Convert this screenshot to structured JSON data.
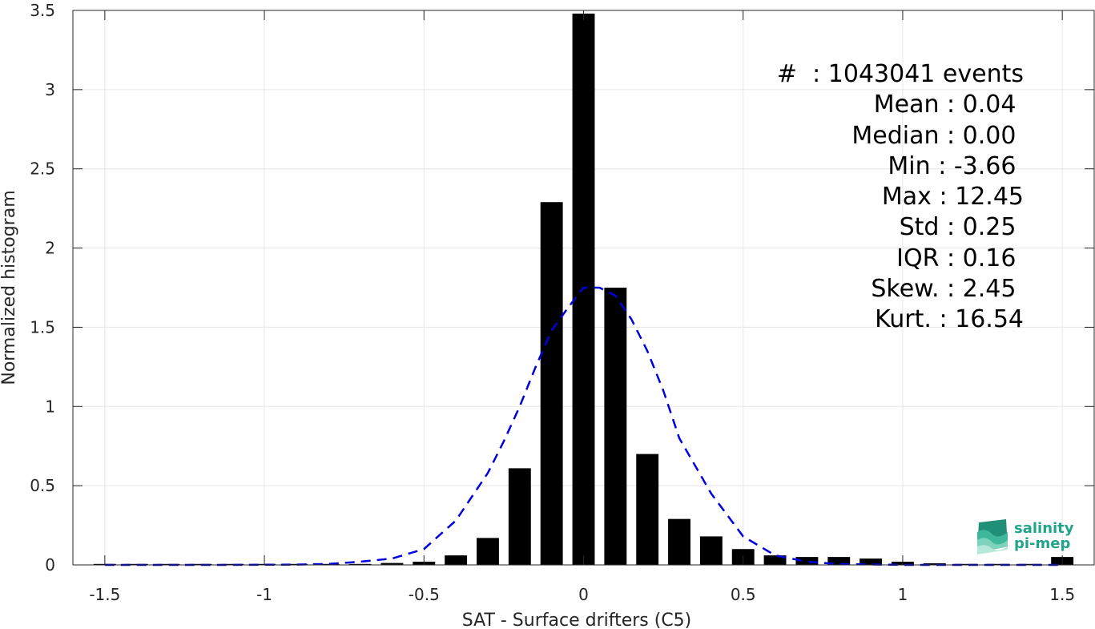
{
  "chart_data": {
    "type": "bar",
    "xlabel": "SAT - Surface drifters (C5)",
    "ylabel": "Normalized histogram",
    "xlim": [
      -1.6,
      1.6
    ],
    "ylim": [
      0,
      3.5
    ],
    "grid": true,
    "xticks": [
      -1.5,
      -1,
      -0.5,
      0,
      0.5,
      1,
      1.5
    ],
    "xtick_labels": [
      "-1.5",
      "-1",
      "-0.5",
      "0",
      "0.5",
      "1",
      "1.5"
    ],
    "yticks": [
      0,
      0.5,
      1,
      1.5,
      2,
      2.5,
      3,
      3.5
    ],
    "ytick_labels": [
      "0",
      "0.5",
      "1",
      "1.5",
      "2",
      "2.5",
      "3",
      "3.5"
    ],
    "bar_width": 0.07,
    "bars": {
      "color": "#000000",
      "x": [
        -1.5,
        -1.4,
        -1.3,
        -1.2,
        -1.1,
        -1.0,
        -0.9,
        -0.8,
        -0.7,
        -0.6,
        -0.5,
        -0.4,
        -0.3,
        -0.2,
        -0.1,
        0.0,
        0.1,
        0.2,
        0.3,
        0.4,
        0.5,
        0.6,
        0.7,
        0.8,
        0.9,
        1.0,
        1.1,
        1.2,
        1.3,
        1.4,
        1.5
      ],
      "values": [
        0.002,
        0.001,
        0.001,
        0.001,
        0.001,
        0.002,
        0.002,
        0.003,
        0.005,
        0.012,
        0.02,
        0.06,
        0.17,
        0.61,
        2.29,
        3.48,
        1.75,
        0.7,
        0.29,
        0.18,
        0.1,
        0.06,
        0.05,
        0.05,
        0.04,
        0.02,
        0.01,
        0.005,
        0.005,
        0.003,
        0.05
      ]
    },
    "fit_curve": {
      "color": "#0000dd",
      "style": "dashed",
      "x": [
        -1.5,
        -1.3,
        -1.1,
        -0.9,
        -0.8,
        -0.7,
        -0.6,
        -0.5,
        -0.4,
        -0.3,
        -0.25,
        -0.2,
        -0.15,
        -0.1,
        -0.05,
        0.0,
        0.05,
        0.1,
        0.15,
        0.2,
        0.25,
        0.3,
        0.4,
        0.5,
        0.6,
        0.7,
        0.8,
        1.0,
        1.2,
        1.5
      ],
      "values": [
        0.0,
        0.0,
        0.0,
        0.002,
        0.006,
        0.02,
        0.04,
        0.1,
        0.28,
        0.58,
        0.78,
        1.0,
        1.25,
        1.48,
        1.62,
        1.75,
        1.75,
        1.7,
        1.55,
        1.35,
        1.1,
        0.8,
        0.45,
        0.18,
        0.06,
        0.02,
        0.005,
        0.0,
        0.0,
        0.0
      ]
    }
  },
  "stats": [
    "#  : 1043041 events",
    "Mean : 0.04 ",
    "Median : 0.00 ",
    "Min : -3.66 ",
    "Max : 12.45",
    "Std : 0.25 ",
    "IQR : 0.16 ",
    "Skew. : 2.45 ",
    "Kurt. : 16.54"
  ],
  "logo": {
    "line1": "salinity",
    "line2": "pi-mep",
    "color": "#22a48a"
  }
}
